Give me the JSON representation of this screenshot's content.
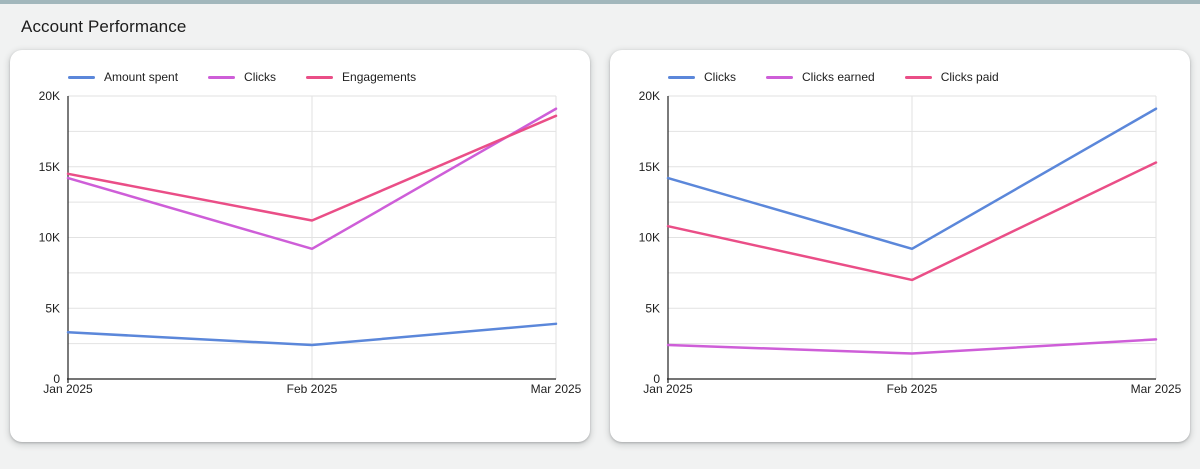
{
  "title": "Account Performance",
  "theme": {
    "top_accent_bar": "#a2b7bc",
    "page_background": "#f1f2f2",
    "card_background": "#ffffff",
    "grid_color": "#e2e2e2",
    "axis_color": "#222222",
    "text_color": "#1e1e1e",
    "series_blue": "#5b87da",
    "series_violet": "#ce5ed8",
    "series_pink": "#ea4e87"
  },
  "chart_data": [
    {
      "type": "line",
      "title": "",
      "categories": [
        "Jan 2025",
        "Feb 2025",
        "Mar 2025"
      ],
      "series": [
        {
          "name": "Amount spent",
          "color": "#5b87da",
          "values": [
            3300,
            2400,
            3900
          ]
        },
        {
          "name": "Clicks",
          "color": "#ce5ed8",
          "values": [
            14200,
            9200,
            19100
          ]
        },
        {
          "name": "Engagements",
          "color": "#ea4e87",
          "values": [
            14500,
            11200,
            18600
          ]
        }
      ],
      "xlabel": "",
      "ylabel": "",
      "ylim": [
        0,
        20000
      ],
      "yticks": [
        0,
        5000,
        10000,
        15000,
        20000
      ],
      "ytick_labels": [
        "0",
        "5K",
        "10K",
        "15K",
        "20K"
      ],
      "minor_grid_step": 2500,
      "grid": true,
      "legend_position": "top"
    },
    {
      "type": "line",
      "title": "",
      "categories": [
        "Jan 2025",
        "Feb 2025",
        "Mar 2025"
      ],
      "series": [
        {
          "name": "Clicks",
          "color": "#5b87da",
          "values": [
            14200,
            9200,
            19100
          ]
        },
        {
          "name": "Clicks earned",
          "color": "#ce5ed8",
          "values": [
            2400,
            1800,
            2800
          ]
        },
        {
          "name": "Clicks paid",
          "color": "#ea4e87",
          "values": [
            10800,
            7000,
            15300
          ]
        }
      ],
      "xlabel": "",
      "ylabel": "",
      "ylim": [
        0,
        20000
      ],
      "yticks": [
        0,
        5000,
        10000,
        15000,
        20000
      ],
      "ytick_labels": [
        "0",
        "5K",
        "10K",
        "15K",
        "20K"
      ],
      "minor_grid_step": 2500,
      "grid": true,
      "legend_position": "top"
    }
  ]
}
